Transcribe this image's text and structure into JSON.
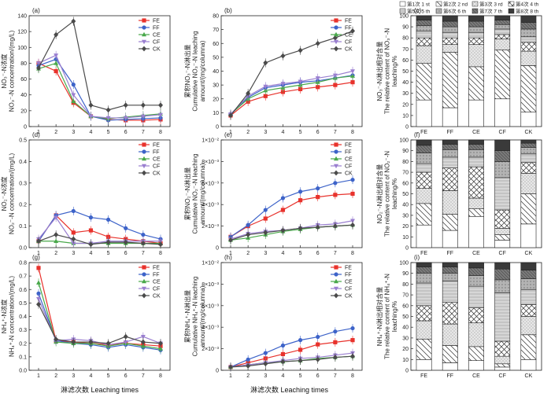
{
  "figure": {
    "xlabel": "淋滤次数 Leaching times"
  },
  "colors": {
    "FE": "#e8322c",
    "FF": "#3d63c9",
    "CE": "#49a84a",
    "CF": "#9a7fd0",
    "CK": "#4a4a4a",
    "axis": "#222222"
  },
  "legend_items": [
    "FE",
    "FF",
    "CE",
    "CF",
    "CK"
  ],
  "chart_data": [
    {
      "panel": "(a)",
      "type": "line",
      "title": "",
      "ylabel": [
        "NO₃⁻-N浓度",
        "NO₃⁻-N concentration/(mg/L)"
      ],
      "x": [
        1,
        2,
        3,
        4,
        5,
        6,
        7,
        8
      ],
      "ylim": [
        0,
        140
      ],
      "yticks": [
        "0",
        "20",
        "40",
        "60",
        "80",
        "100",
        "120",
        "140"
      ],
      "series": [
        {
          "name": "FE",
          "values": [
            80,
            70,
            30,
            13,
            9,
            8,
            8,
            9
          ]
        },
        {
          "name": "FF",
          "values": [
            77,
            85,
            53,
            13,
            8,
            9,
            10,
            11
          ]
        },
        {
          "name": "CE",
          "values": [
            73,
            80,
            32,
            13,
            10,
            12,
            14,
            16
          ]
        },
        {
          "name": "CF",
          "values": [
            80,
            90,
            40,
            13,
            11,
            11,
            13,
            15
          ]
        },
        {
          "name": "CK",
          "values": [
            74,
            116,
            133,
            27,
            21,
            27,
            27,
            27
          ]
        }
      ]
    },
    {
      "panel": "(b)",
      "type": "line",
      "title": "",
      "ylabel": [
        "累积NO₃⁻-N淋出量",
        "Cumulative NO₃⁻-N leaching",
        "amount/(mg/columna)"
      ],
      "x": [
        1,
        2,
        3,
        4,
        5,
        6,
        7,
        8
      ],
      "ylim": [
        0,
        80
      ],
      "yticks": [
        "0",
        "10",
        "20",
        "30",
        "40",
        "50",
        "60",
        "70",
        "80"
      ],
      "series": [
        {
          "name": "FE",
          "values": [
            8,
            18,
            22,
            25,
            27,
            28.5,
            30,
            32
          ]
        },
        {
          "name": "FF",
          "values": [
            9,
            21,
            28,
            30,
            32,
            33,
            35,
            37
          ]
        },
        {
          "name": "CE",
          "values": [
            9,
            20,
            26,
            28,
            30,
            32,
            35,
            36.5
          ]
        },
        {
          "name": "CF",
          "values": [
            9,
            22,
            29,
            31,
            32.5,
            35,
            37,
            40
          ]
        },
        {
          "name": "CK",
          "values": [
            8,
            24,
            46,
            51,
            55,
            60,
            64,
            69
          ]
        }
      ]
    },
    {
      "panel": "(c)",
      "type": "bar",
      "stacked": true,
      "title": "",
      "ylabel": [
        "NO₃⁻-N淋出相对含量",
        "The relative content of NO₃⁻-N",
        "leaching/%"
      ],
      "categories": [
        "FE",
        "FF",
        "CE",
        "CF",
        "CK"
      ],
      "ylim": [
        0,
        100
      ],
      "yticks": [
        "0",
        "10",
        "20",
        "30",
        "40",
        "50",
        "60",
        "70",
        "80",
        "90",
        "100"
      ],
      "series": [
        {
          "name": "第1次 1 st",
          "values": [
            24,
            17,
            24,
            25,
            13
          ]
        },
        {
          "name": "第2次 2 nd",
          "values": [
            33,
            50,
            30,
            44,
            42
          ]
        },
        {
          "name": "第3次 3 rd",
          "values": [
            16,
            7,
            20,
            10,
            13
          ]
        },
        {
          "name": "第4次 4 th",
          "values": [
            7,
            6,
            6,
            4,
            8
          ]
        },
        {
          "name": "第5次 5 th",
          "values": [
            6,
            5,
            5,
            5,
            5
          ]
        },
        {
          "name": "第6次 6 th",
          "values": [
            5,
            5,
            5,
            4,
            7
          ]
        },
        {
          "name": "第7次 7 th",
          "values": [
            5,
            5,
            5,
            4,
            6
          ]
        },
        {
          "name": "第8次 8 th",
          "values": [
            4,
            5,
            5,
            4,
            6
          ]
        }
      ]
    },
    {
      "panel": "(d)",
      "type": "line",
      "title": "",
      "ylabel": [
        "NO₂⁻-N浓度",
        "NO₂⁻-N concentration/(mg/L)"
      ],
      "x": [
        1,
        2,
        3,
        4,
        5,
        6,
        7,
        8
      ],
      "ylim": [
        0,
        0.5
      ],
      "yticks": [
        "0.0",
        "0.1",
        "0.2",
        "0.3",
        "0.4",
        "0.5"
      ],
      "series": [
        {
          "name": "FE",
          "values": [
            0.03,
            0.15,
            0.07,
            0.08,
            0.05,
            0.04,
            0.03,
            0.02
          ]
        },
        {
          "name": "FF",
          "values": [
            0.03,
            0.15,
            0.17,
            0.14,
            0.13,
            0.09,
            0.06,
            0.04
          ]
        },
        {
          "name": "CE",
          "values": [
            0.03,
            0.03,
            0.02,
            0.02,
            0.02,
            0.02,
            0.02,
            0.02
          ]
        },
        {
          "name": "CF",
          "values": [
            0.04,
            0.14,
            0.02,
            0.02,
            0.03,
            0.03,
            0.03,
            0.03
          ]
        },
        {
          "name": "CK",
          "values": [
            0.03,
            0.06,
            0.04,
            0.015,
            0.025,
            0.025,
            0.02,
            0.015
          ]
        }
      ]
    },
    {
      "panel": "(e)",
      "type": "line",
      "title": "",
      "ylabel": [
        "累积NO₂⁻-N淋出量",
        "Cumulative NO₂⁻-N leaching",
        "amount/(mg/columna)"
      ],
      "x": [
        1,
        2,
        3,
        4,
        5,
        6,
        7,
        8
      ],
      "ylim": [
        0,
        0.01
      ],
      "yticks": [
        "0",
        "2×10⁻³",
        "4×10⁻³",
        "6×10⁻³",
        "8×10⁻³",
        "1×10⁻²"
      ],
      "series": [
        {
          "name": "FE",
          "values": [
            0.001,
            0.002,
            0.0027,
            0.0035,
            0.0044,
            0.0047,
            0.0049,
            0.005
          ]
        },
        {
          "name": "FF",
          "values": [
            0.001,
            0.0021,
            0.0035,
            0.0046,
            0.0052,
            0.0055,
            0.006,
            0.0063
          ]
        },
        {
          "name": "CE",
          "values": [
            0.0007,
            0.0009,
            0.0012,
            0.0015,
            0.0017,
            0.0019,
            0.002,
            0.0021
          ]
        },
        {
          "name": "CF",
          "values": [
            0.0008,
            0.0013,
            0.0015,
            0.0016,
            0.0018,
            0.0021,
            0.0022,
            0.0025
          ]
        },
        {
          "name": "CK",
          "values": [
            0.0007,
            0.0012,
            0.0014,
            0.0016,
            0.0018,
            0.0019,
            0.002,
            0.0021
          ]
        }
      ]
    },
    {
      "panel": "(f)",
      "type": "bar",
      "stacked": true,
      "title": "",
      "ylabel": [
        "NO₂⁻-N淋出相对含量",
        "The relative content of NO₂⁻-N",
        "leaching/%"
      ],
      "categories": [
        "FE",
        "FF",
        "CE",
        "CF",
        "CK"
      ],
      "ylim": [
        0,
        100
      ],
      "yticks": [
        "0",
        "10",
        "20",
        "30",
        "40",
        "50",
        "60",
        "70",
        "80",
        "90",
        "100"
      ],
      "series": [
        {
          "name": "第1次 1 st",
          "values": [
            21,
            16,
            29,
            7,
            22
          ]
        },
        {
          "name": "第2次 2 nd",
          "values": [
            20,
            15,
            7,
            5,
            28
          ]
        },
        {
          "name": "第3次 3 rd",
          "values": [
            14,
            22,
            10,
            6,
            19
          ]
        },
        {
          "name": "第4次 4 th",
          "values": [
            15,
            21,
            29,
            17,
            10
          ]
        },
        {
          "name": "第5次 5 th",
          "values": [
            8,
            10,
            9,
            30,
            8
          ]
        },
        {
          "name": "第6次 6 th",
          "values": [
            10,
            7,
            7,
            15,
            6
          ]
        },
        {
          "name": "第7次 7 th",
          "values": [
            7,
            5,
            5,
            10,
            4
          ]
        },
        {
          "name": "第8次 8 th",
          "values": [
            5,
            4,
            4,
            10,
            3
          ]
        }
      ]
    },
    {
      "panel": "(g)",
      "type": "line",
      "title": "",
      "ylabel": [
        "NH₄⁺-N浓度",
        "NH₄⁺-N concentration/(mg/L)"
      ],
      "x": [
        1,
        2,
        3,
        4,
        5,
        6,
        7,
        8
      ],
      "ylim": [
        0,
        0.8
      ],
      "yticks": [
        "0.0",
        "0.1",
        "0.2",
        "0.3",
        "0.4",
        "0.5",
        "0.6",
        "0.7",
        "0.8"
      ],
      "series": [
        {
          "name": "FE",
          "values": [
            0.76,
            0.22,
            0.21,
            0.2,
            0.19,
            0.2,
            0.19,
            0.18
          ]
        },
        {
          "name": "FF",
          "values": [
            0.57,
            0.22,
            0.2,
            0.19,
            0.17,
            0.19,
            0.17,
            0.15
          ]
        },
        {
          "name": "CE",
          "values": [
            0.65,
            0.21,
            0.2,
            0.2,
            0.18,
            0.2,
            0.18,
            0.16
          ]
        },
        {
          "name": "CF",
          "values": [
            0.53,
            0.22,
            0.23,
            0.22,
            0.19,
            0.21,
            0.25,
            0.2
          ]
        },
        {
          "name": "CK",
          "values": [
            0.49,
            0.23,
            0.21,
            0.21,
            0.2,
            0.25,
            0.21,
            0.2
          ]
        }
      ]
    },
    {
      "panel": "(h)",
      "type": "line",
      "title": "",
      "ylabel": [
        "累积NH₄⁺-N淋出量",
        "Cumulative NH₄⁺-N leaching",
        "amount/(mg/columna)"
      ],
      "x": [
        1,
        2,
        3,
        4,
        5,
        6,
        7,
        8
      ],
      "ylim": [
        0,
        0.01
      ],
      "yticks": [
        "0",
        "2×10⁻³",
        "4×10⁻³",
        "6×10⁻³",
        "8×10⁻³",
        "1×10⁻²"
      ],
      "series": [
        {
          "name": "FE",
          "values": [
            0.0003,
            0.0007,
            0.0011,
            0.0015,
            0.0019,
            0.0024,
            0.0026,
            0.0028
          ]
        },
        {
          "name": "FF",
          "values": [
            0.0003,
            0.001,
            0.0016,
            0.0023,
            0.0028,
            0.0031,
            0.0036,
            0.0039
          ]
        },
        {
          "name": "CE",
          "values": [
            0.0003,
            0.0005,
            0.0007,
            0.0008,
            0.0009,
            0.0011,
            0.0012,
            0.0013
          ]
        },
        {
          "name": "CF",
          "values": [
            0.0003,
            0.0005,
            0.0007,
            0.0009,
            0.0011,
            0.0012,
            0.0014,
            0.0016
          ]
        },
        {
          "name": "CK",
          "values": [
            0.0003,
            0.0004,
            0.0006,
            0.0008,
            0.0009,
            0.001,
            0.0012,
            0.0013
          ]
        }
      ]
    },
    {
      "panel": "(i)",
      "type": "bar",
      "stacked": true,
      "title": "",
      "ylabel": [
        "NH₄⁺-N淋出相对含量",
        "The relative content of NH₄⁺-N",
        "leaching/%"
      ],
      "categories": [
        "FE",
        "FF",
        "CE",
        "CF",
        "CK"
      ],
      "ylim": [
        0,
        100
      ],
      "yticks": [
        "0",
        "10",
        "20",
        "30",
        "40",
        "50",
        "60",
        "70",
        "80",
        "90",
        "100"
      ],
      "series": [
        {
          "name": "第1次 1 st",
          "values": [
            10,
            7,
            9,
            3,
            10
          ]
        },
        {
          "name": "第2次 2 nd",
          "values": [
            19,
            16,
            13,
            3,
            23
          ]
        },
        {
          "name": "第3次 3 rd",
          "values": [
            17,
            20,
            22,
            7,
            17
          ]
        },
        {
          "name": "第4次 4 th",
          "values": [
            14,
            20,
            14,
            14,
            11
          ]
        },
        {
          "name": "第5次 5 th",
          "values": [
            21,
            20,
            20,
            45,
            14
          ]
        },
        {
          "name": "第6次 6 th",
          "values": [
            9,
            7,
            10,
            12,
            10
          ]
        },
        {
          "name": "第7次 7 th",
          "values": [
            6,
            6,
            7,
            10,
            8
          ]
        },
        {
          "name": "第8次 8 th",
          "values": [
            4,
            4,
            5,
            6,
            7
          ]
        }
      ]
    }
  ]
}
